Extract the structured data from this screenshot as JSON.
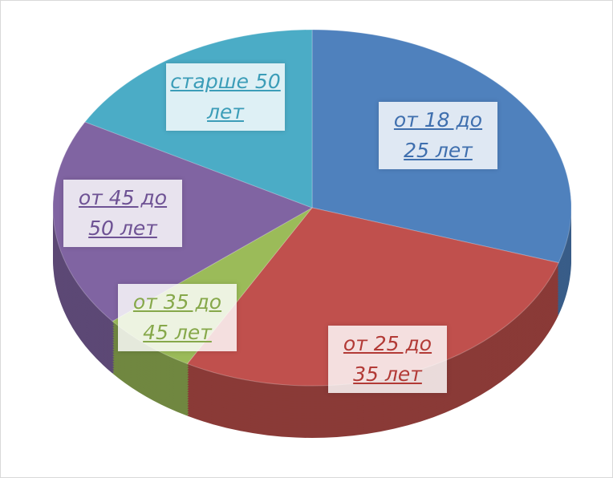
{
  "chart_data": {
    "type": "pie",
    "categories": [
      "от 18 до 25 лет",
      "от 25 до 35 лет",
      "от 35 до 45 лет",
      "от 45 до 50 лет",
      "старше 50 лет"
    ],
    "values": [
      30,
      28,
      6,
      19,
      17
    ],
    "colors": [
      "#4f81bd",
      "#c0504d",
      "#9bbb59",
      "#8064a2",
      "#4bacc6"
    ],
    "label_colors": [
      "#3f6fae",
      "#b23a36",
      "#86a84a",
      "#6e5294",
      "#3c9db8"
    ]
  }
}
